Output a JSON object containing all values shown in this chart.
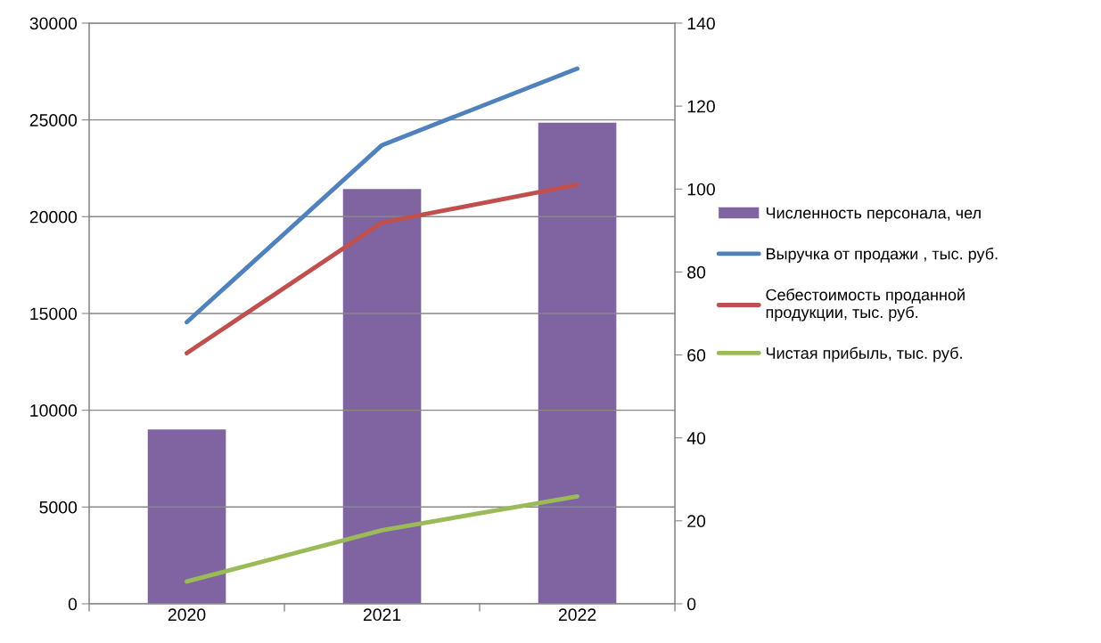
{
  "chart_data": {
    "type": "line",
    "categories": [
      "2020",
      "2021",
      "2022"
    ],
    "series": [
      {
        "name": "Численность персонала, чел",
        "type": "bar",
        "axis": "y2",
        "color": "#8064a2",
        "values": [
          42,
          100,
          116
        ]
      },
      {
        "name": "Выручка от продажи , тыс. руб.",
        "color": "#4f81bd",
        "values": [
          14550,
          23700,
          27650
        ]
      },
      {
        "name": "Себестоимость проданной продукции, тыс. руб.",
        "color": "#c0504d",
        "values": [
          12950,
          19700,
          21650
        ]
      },
      {
        "name": "Чистая прибыль, тыс. руб.",
        "color": "#9bbb59",
        "values": [
          1150,
          3800,
          5550
        ]
      }
    ],
    "ylim": [
      0,
      30000
    ],
    "yticks": [
      0,
      5000,
      10000,
      15000,
      20000,
      25000,
      30000
    ],
    "y2lim": [
      0,
      140
    ],
    "y2ticks": [
      0,
      20,
      40,
      60,
      80,
      100,
      120,
      140
    ],
    "grid": "y",
    "legend": "right",
    "marker": "none",
    "line_style": "solid"
  }
}
